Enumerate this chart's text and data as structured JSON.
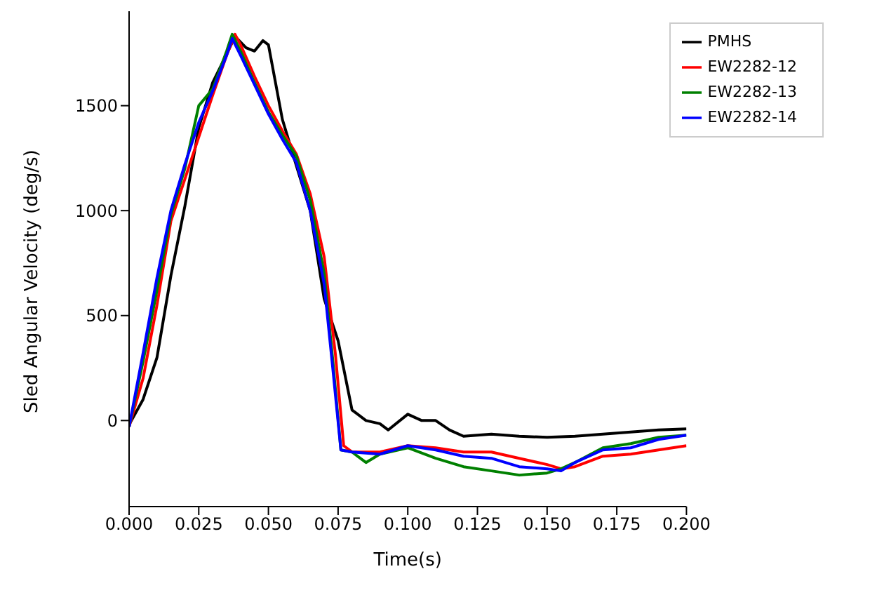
{
  "chart_data": {
    "type": "line",
    "xlabel": "Time(s)",
    "ylabel": "Sled Angular Velocity (deg/s)",
    "xlim": [
      0,
      0.2
    ],
    "xticks": [
      {
        "value": 0,
        "label": "0.000"
      },
      {
        "value": 0.025,
        "label": "0.025"
      },
      {
        "value": 0.05,
        "label": "0.050"
      },
      {
        "value": 0.075,
        "label": "0.075"
      },
      {
        "value": 0.1,
        "label": "0.100"
      },
      {
        "value": 0.125,
        "label": "0.125"
      },
      {
        "value": 0.15,
        "label": "0.150"
      },
      {
        "value": 0.175,
        "label": "0.175"
      },
      {
        "value": 0.2,
        "label": "0.200"
      }
    ],
    "ylim": [
      -410,
      1950
    ],
    "yticks": [
      0,
      500,
      1000,
      1500
    ],
    "grid": false,
    "legend": "top right",
    "line_style": "solid",
    "marker": "none",
    "series": [
      {
        "name": "PMHS",
        "color": "#000000",
        "x": [
          0,
          0.005,
          0.01,
          0.015,
          0.02,
          0.025,
          0.03,
          0.035,
          0.038,
          0.042,
          0.045,
          0.048,
          0.05,
          0.055,
          0.06,
          0.065,
          0.07,
          0.075,
          0.08,
          0.085,
          0.09,
          0.093,
          0.1,
          0.105,
          0.11,
          0.115,
          0.12,
          0.13,
          0.14,
          0.15,
          0.16,
          0.17,
          0.18,
          0.19,
          0.2
        ],
        "values": [
          -20,
          100,
          300,
          690,
          1020,
          1395,
          1610,
          1745,
          1830,
          1776,
          1760,
          1810,
          1790,
          1435,
          1215,
          1000,
          580,
          380,
          50,
          0,
          -15,
          -45,
          30,
          0,
          0,
          -45,
          -75,
          -65,
          -75,
          -80,
          -75,
          -65,
          -55,
          -45,
          -40
        ]
      },
      {
        "name": "EW2282-12",
        "color": "#ff0000",
        "x": [
          0,
          0.005,
          0.01,
          0.015,
          0.02,
          0.025,
          0.03,
          0.035,
          0.038,
          0.04,
          0.045,
          0.05,
          0.055,
          0.06,
          0.065,
          0.07,
          0.074,
          0.077,
          0.08,
          0.09,
          0.1,
          0.11,
          0.12,
          0.13,
          0.14,
          0.15,
          0.155,
          0.16,
          0.17,
          0.18,
          0.19,
          0.2
        ],
        "values": [
          -30,
          200,
          550,
          950,
          1150,
          1350,
          1550,
          1740,
          1840,
          1790,
          1640,
          1500,
          1380,
          1270,
          1080,
          780,
          320,
          -120,
          -150,
          -150,
          -120,
          -130,
          -150,
          -150,
          -180,
          -210,
          -230,
          -220,
          -170,
          -160,
          -140,
          -120
        ]
      },
      {
        "name": "EW2282-13",
        "color": "#008000",
        "x": [
          0,
          0.005,
          0.01,
          0.015,
          0.02,
          0.025,
          0.03,
          0.035,
          0.037,
          0.04,
          0.045,
          0.05,
          0.055,
          0.06,
          0.065,
          0.07,
          0.073,
          0.076,
          0.08,
          0.085,
          0.09,
          0.1,
          0.11,
          0.12,
          0.13,
          0.14,
          0.15,
          0.155,
          0.16,
          0.17,
          0.18,
          0.19,
          0.2
        ],
        "values": [
          -30,
          280,
          620,
          980,
          1200,
          1500,
          1580,
          1760,
          1840,
          1760,
          1610,
          1470,
          1360,
          1260,
          1050,
          700,
          300,
          -140,
          -150,
          -200,
          -160,
          -130,
          -180,
          -220,
          -240,
          -260,
          -250,
          -230,
          -200,
          -130,
          -110,
          -80,
          -70
        ]
      },
      {
        "name": "EW2282-14",
        "color": "#0000ff",
        "x": [
          0,
          0.005,
          0.01,
          0.015,
          0.02,
          0.025,
          0.03,
          0.035,
          0.037,
          0.04,
          0.045,
          0.05,
          0.055,
          0.06,
          0.065,
          0.07,
          0.073,
          0.076,
          0.08,
          0.09,
          0.1,
          0.11,
          0.12,
          0.13,
          0.14,
          0.15,
          0.155,
          0.16,
          0.17,
          0.18,
          0.19,
          0.2
        ],
        "values": [
          -30,
          320,
          680,
          1000,
          1220,
          1420,
          1570,
          1740,
          1820,
          1740,
          1600,
          1460,
          1340,
          1230,
          1000,
          650,
          260,
          -140,
          -150,
          -160,
          -120,
          -140,
          -170,
          -180,
          -220,
          -230,
          -240,
          -200,
          -140,
          -130,
          -90,
          -70
        ]
      }
    ]
  }
}
